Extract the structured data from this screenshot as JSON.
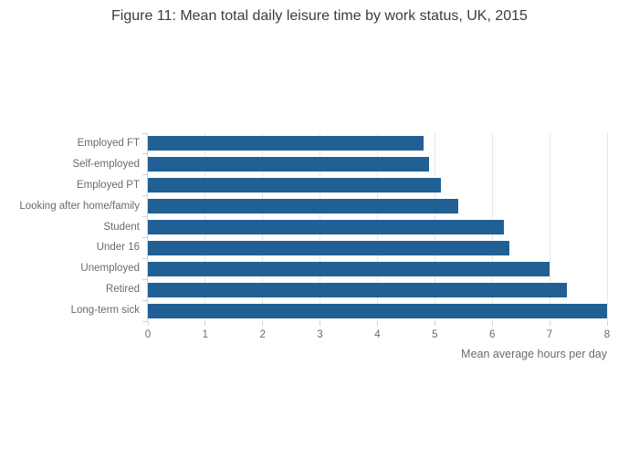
{
  "chart_data": {
    "type": "bar",
    "orientation": "horizontal",
    "title": "Figure 11: Mean total daily leisure time by work status, UK, 2015",
    "categories": [
      "Employed FT",
      "Self-employed",
      "Employed PT",
      "Looking after home/family",
      "Student",
      "Under 16",
      "Unemployed",
      "Retired",
      "Long-term sick"
    ],
    "values": [
      4.8,
      4.9,
      5.1,
      5.4,
      6.2,
      6.3,
      7.0,
      7.3,
      8.0
    ],
    "xlabel": "Mean average hours per day",
    "ylabel": "",
    "xlim": [
      0,
      8
    ],
    "xticks": [
      0,
      1,
      2,
      3,
      4,
      5,
      6,
      7,
      8
    ],
    "grid": true,
    "legend": false,
    "colors": {
      "bar": "#206095",
      "grid": "#e7e7e7",
      "axis": "#c9d5e3",
      "tick_text": "#6b6b6b",
      "title_text": "#3c3c3c",
      "background": "#ffffff"
    }
  }
}
